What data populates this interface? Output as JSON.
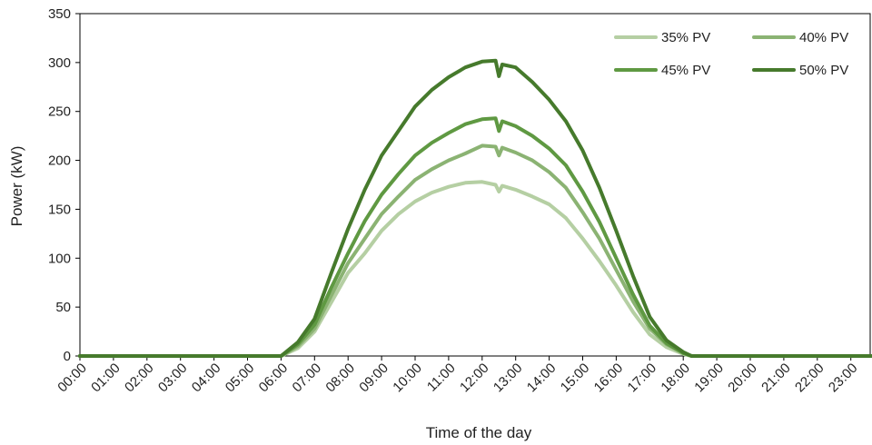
{
  "chart_data": {
    "type": "line",
    "title": "",
    "xlabel": "Time of the day",
    "ylabel": "Power (kW)",
    "ylim": [
      0,
      350
    ],
    "yticks": [
      "0",
      "50",
      "100",
      "150",
      "200",
      "250",
      "300",
      "350"
    ],
    "xticks": [
      "00:00",
      "01:00",
      "02:00",
      "03:00",
      "04:00",
      "05:00",
      "06:00",
      "07:00",
      "08:00",
      "09:00",
      "10:00",
      "11:00",
      "12:00",
      "13:00",
      "14:00",
      "15:00",
      "16:00",
      "17:00",
      "18:00",
      "19:00",
      "20:00",
      "21:00",
      "22:00",
      "23:00"
    ],
    "x_hours": [
      0,
      6,
      6.5,
      7,
      7.5,
      8,
      8.5,
      9,
      9.5,
      10,
      10.5,
      11,
      11.5,
      12,
      12.4,
      12.5,
      12.6,
      13,
      13.5,
      14,
      14.5,
      15,
      15.5,
      16,
      16.5,
      17,
      17.5,
      18,
      18.25,
      24
    ],
    "legend_position": "top-right",
    "grid": false,
    "series": [
      {
        "name": "35% PV",
        "color": "#b5cfa3",
        "values": [
          0,
          0,
          8,
          25,
          55,
          85,
          105,
          128,
          145,
          158,
          167,
          173,
          177,
          178,
          175,
          168,
          174,
          170,
          163,
          155,
          141,
          120,
          97,
          72,
          45,
          22,
          9,
          2,
          0,
          0
        ]
      },
      {
        "name": "40% PV",
        "color": "#8bb373",
        "values": [
          0,
          0,
          10,
          28,
          62,
          95,
          120,
          145,
          163,
          180,
          191,
          200,
          207,
          215,
          214,
          205,
          213,
          208,
          200,
          188,
          172,
          147,
          120,
          88,
          56,
          28,
          12,
          3,
          0,
          0
        ]
      },
      {
        "name": "45% PV",
        "color": "#5f9942",
        "values": [
          0,
          0,
          12,
          32,
          70,
          105,
          138,
          165,
          186,
          205,
          218,
          228,
          237,
          242,
          243,
          230,
          240,
          235,
          225,
          212,
          195,
          168,
          137,
          100,
          63,
          31,
          13,
          3,
          0,
          0
        ]
      },
      {
        "name": "50% PV",
        "color": "#467a2c",
        "values": [
          0,
          0,
          14,
          38,
          85,
          130,
          170,
          205,
          230,
          255,
          272,
          285,
          295,
          301,
          302,
          286,
          298,
          295,
          280,
          262,
          240,
          210,
          172,
          128,
          82,
          40,
          16,
          4,
          0,
          0
        ]
      }
    ]
  }
}
